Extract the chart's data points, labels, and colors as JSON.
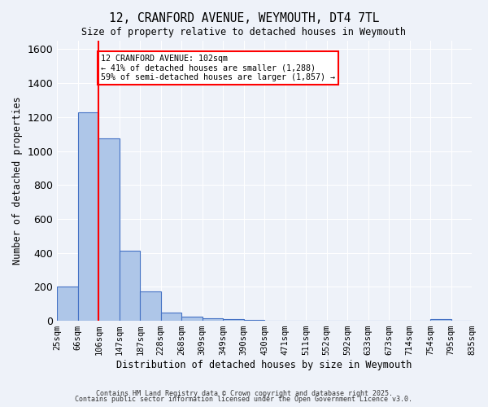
{
  "title1": "12, CRANFORD AVENUE, WEYMOUTH, DT4 7TL",
  "title2": "Size of property relative to detached houses in Weymouth",
  "xlabel": "Distribution of detached houses by size in Weymouth",
  "ylabel": "Number of detached properties",
  "tick_labels": [
    "25sqm",
    "66sqm",
    "106sqm",
    "147sqm",
    "187sqm",
    "228sqm",
    "268sqm",
    "309sqm",
    "349sqm",
    "390sqm",
    "430sqm",
    "471sqm",
    "511sqm",
    "552sqm",
    "592sqm",
    "633sqm",
    "673sqm",
    "714sqm",
    "754sqm",
    "795sqm",
    "835sqm"
  ],
  "bar_values": [
    200,
    1230,
    1075,
    415,
    175,
    50,
    25,
    15,
    10,
    5,
    0,
    0,
    0,
    0,
    0,
    0,
    0,
    0,
    10,
    0
  ],
  "bar_color": "#aec6e8",
  "bar_edge_color": "#4472c4",
  "vline_x": 2,
  "vline_color": "red",
  "annotation_text": "12 CRANFORD AVENUE: 102sqm\n← 41% of detached houses are smaller (1,288)\n59% of semi-detached houses are larger (1,857) →",
  "annotation_box_color": "white",
  "annotation_box_edge_color": "red",
  "ylim": [
    0,
    1650
  ],
  "yticks": [
    0,
    200,
    400,
    600,
    800,
    1000,
    1200,
    1400,
    1600
  ],
  "background_color": "#eef2f9",
  "grid_color": "white",
  "footer1": "Contains HM Land Registry data © Crown copyright and database right 2025.",
  "footer2": "Contains public sector information licensed under the Open Government Licence v3.0."
}
